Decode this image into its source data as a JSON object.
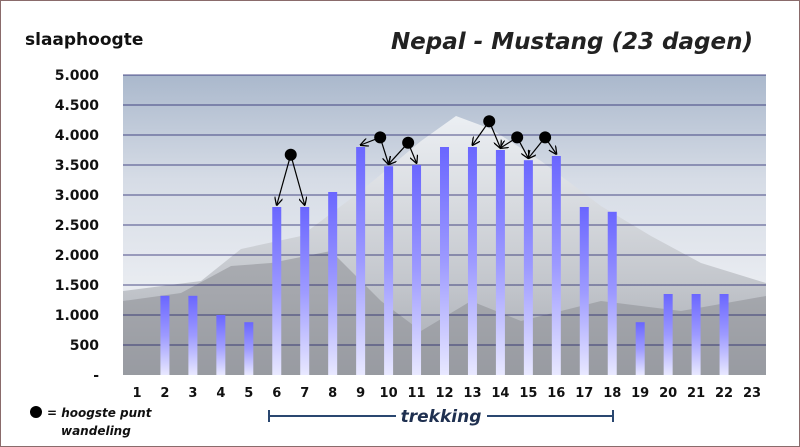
{
  "chart_data": {
    "type": "bar",
    "title": "Nepal - Mustang (23 dagen)",
    "ylabel": "slaaphoogte",
    "xlabel": "",
    "ylim": [
      0,
      5000
    ],
    "yticks": [
      "-",
      "500",
      "1.000",
      "1.500",
      "2.000",
      "2.500",
      "3.000",
      "3.500",
      "4.000",
      "4.500",
      "5.000"
    ],
    "grid": true,
    "categories": [
      "1",
      "2",
      "3",
      "4",
      "5",
      "6",
      "7",
      "8",
      "9",
      "10",
      "11",
      "12",
      "13",
      "14",
      "15",
      "16",
      "17",
      "18",
      "19",
      "20",
      "21",
      "22",
      "23"
    ],
    "values": [
      0,
      1320,
      1320,
      1000,
      880,
      2800,
      2800,
      3050,
      3800,
      3480,
      3500,
      3800,
      3800,
      3750,
      3580,
      3650,
      2800,
      2720,
      880,
      1350,
      1350,
      1350,
      0
    ],
    "highest_points": [
      {
        "day": "6.5",
        "altitude": 3670
      },
      {
        "day": "9.7",
        "altitude": 3960
      },
      {
        "day": "10.7",
        "altitude": 3870
      },
      {
        "day": "13.6",
        "altitude": 4230
      },
      {
        "day": "14.6",
        "altitude": 3960
      },
      {
        "day": "15.6",
        "altitude": 3960
      }
    ],
    "colors": {
      "bar_top": "#6a66ff",
      "bar_bottom": "#e8e8ff",
      "gridline": "#1a1a66",
      "marker": "#000000"
    }
  },
  "legend": {
    "line1": "= hoogste punt",
    "line2": "wandeling",
    "marker_icon": "black-dot"
  },
  "trekking": {
    "label": "trekking",
    "from_day": "6",
    "to_day": "18"
  }
}
